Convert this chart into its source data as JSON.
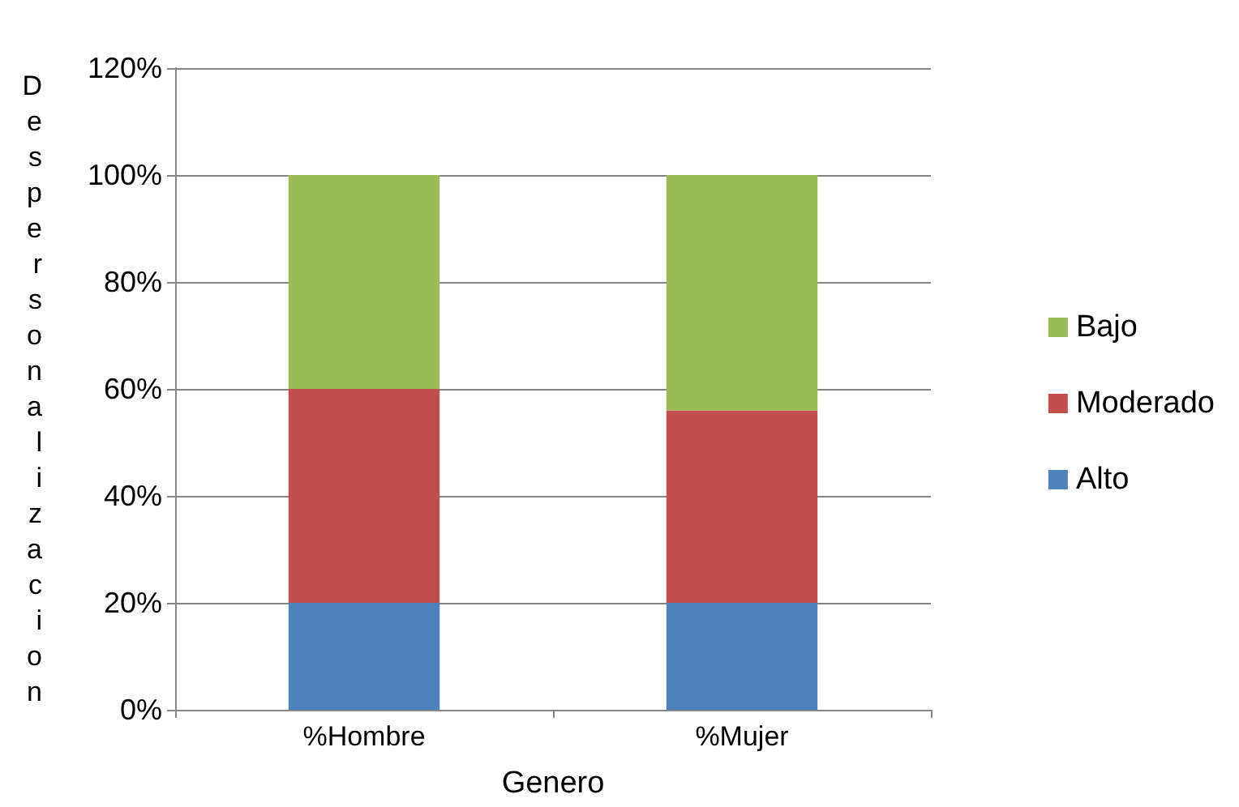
{
  "chart_data": {
    "type": "bar",
    "stacked": true,
    "xlabel": "Genero",
    "ylabel": "Despersonalizacion",
    "categories": [
      "%Hombre",
      "%Mujer"
    ],
    "series": [
      {
        "name": "Alto",
        "color": "#4f81bd",
        "values": [
          20,
          20
        ]
      },
      {
        "name": "Moderado",
        "color": "#c0504d",
        "values": [
          40,
          36
        ]
      },
      {
        "name": "Bajo",
        "color": "#9bbb59",
        "values": [
          40,
          44
        ]
      }
    ],
    "ylim": [
      0,
      120
    ],
    "yticks": [
      {
        "value": 0,
        "label": "0%"
      },
      {
        "value": 20,
        "label": "20%"
      },
      {
        "value": 40,
        "label": "40%"
      },
      {
        "value": 60,
        "label": "60%"
      },
      {
        "value": 80,
        "label": "80%"
      },
      {
        "value": 100,
        "label": "100%"
      },
      {
        "value": 120,
        "label": "120%"
      }
    ],
    "grid": "y",
    "legend": "right"
  }
}
